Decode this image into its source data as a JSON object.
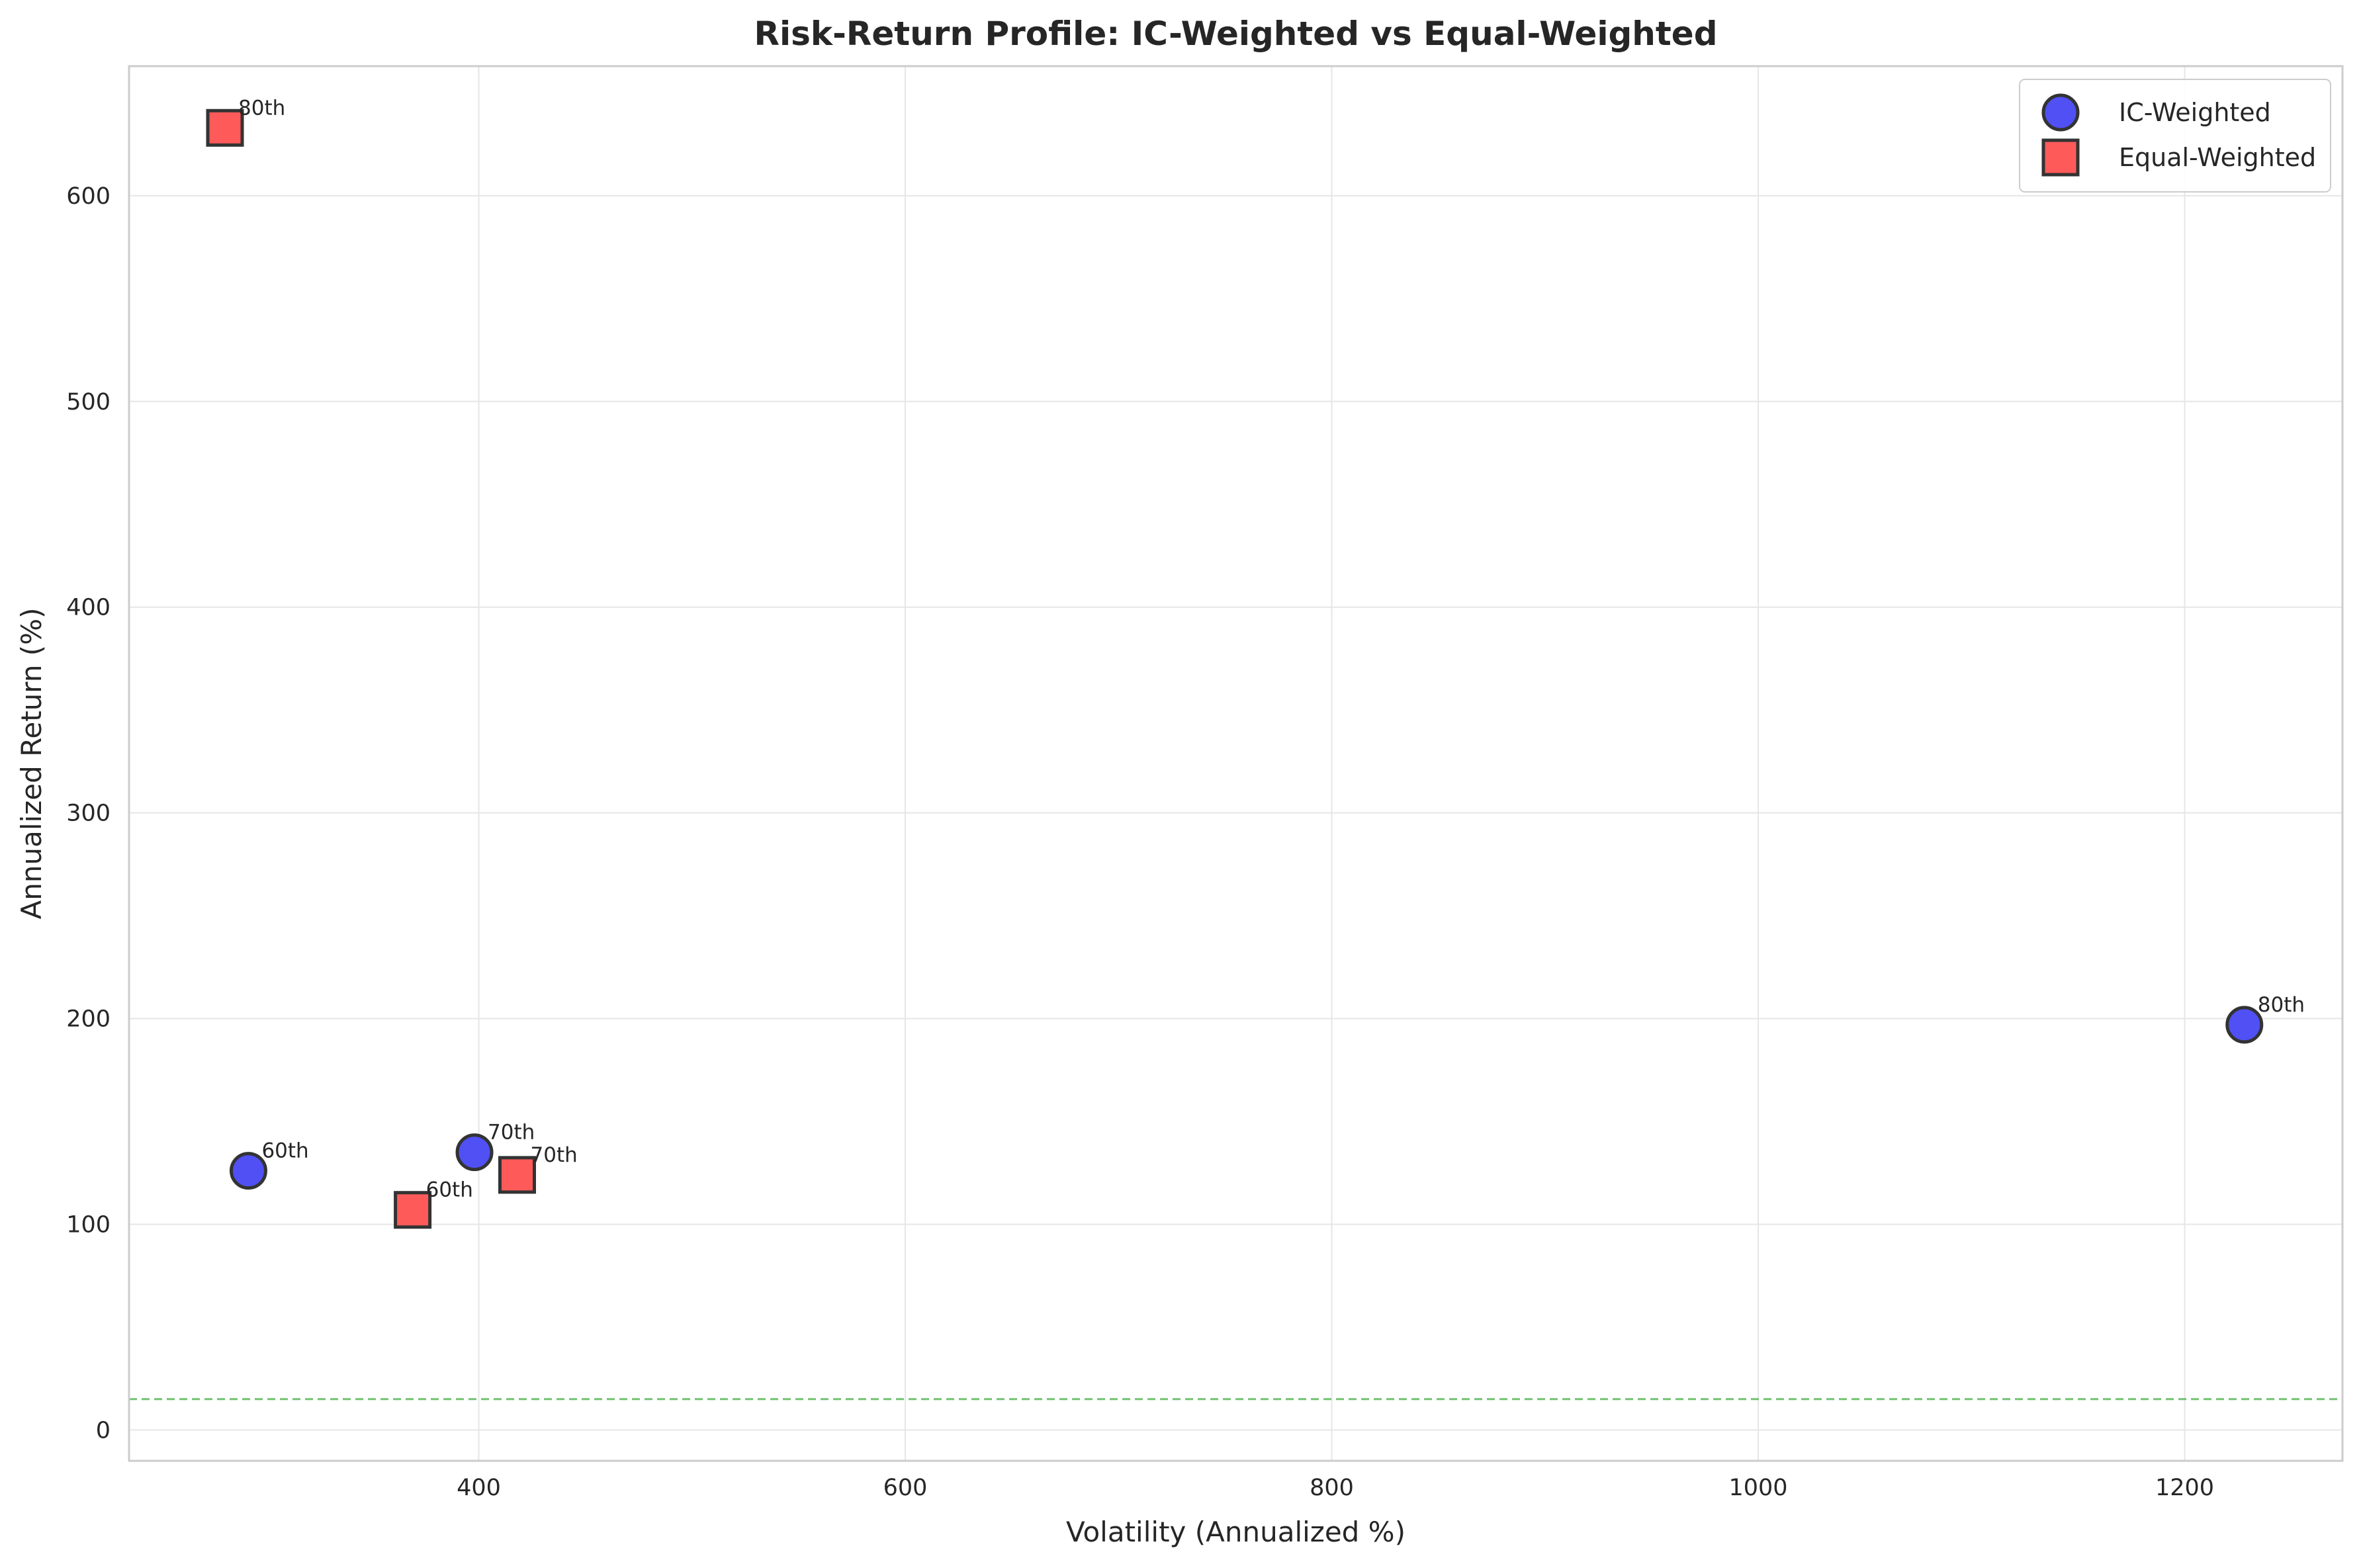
{
  "chart_data": {
    "type": "scatter",
    "title": "Risk-Return Profile: IC-Weighted vs Equal-Weighted",
    "xlabel": "Volatility (Annualized %)",
    "ylabel": "Annualized Return (%)",
    "xlim": [
      236,
      1274
    ],
    "ylim": [
      -15,
      663
    ],
    "xticks": [
      400,
      600,
      800,
      1000,
      1200
    ],
    "yticks": [
      0,
      100,
      200,
      300,
      400,
      500,
      600
    ],
    "grid": true,
    "legend_position": "top-right",
    "reference_line": {
      "orientation": "horizontal",
      "y": 15,
      "style": "dashed",
      "color": "#5cb85c"
    },
    "series": [
      {
        "name": "IC-Weighted",
        "marker": "circle",
        "color": "#5050f5",
        "points": [
          {
            "x": 292,
            "y": 126,
            "label": "60th"
          },
          {
            "x": 398,
            "y": 135,
            "label": "70th"
          },
          {
            "x": 1228,
            "y": 197,
            "label": "80th"
          }
        ]
      },
      {
        "name": "Equal-Weighted",
        "marker": "square",
        "color": "#ff5a5a",
        "points": [
          {
            "x": 369,
            "y": 107,
            "label": "60th"
          },
          {
            "x": 418,
            "y": 124,
            "label": "70th"
          },
          {
            "x": 281,
            "y": 633,
            "label": "80th"
          }
        ]
      }
    ]
  }
}
